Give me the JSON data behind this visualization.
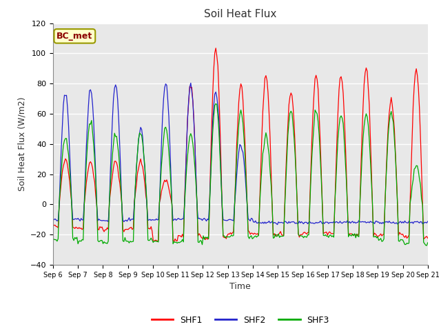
{
  "title": "Soil Heat Flux",
  "ylabel": "Soil Heat Flux (W/m2)",
  "xlabel": "Time",
  "annotation": "BC_met",
  "ylim": [
    -40,
    120
  ],
  "xtick_labels": [
    "Sep 6",
    "Sep 7",
    "Sep 8",
    "Sep 9",
    "Sep 10",
    "Sep 11",
    "Sep 12",
    "Sep 13",
    "Sep 14",
    "Sep 15",
    "Sep 16",
    "Sep 17",
    "Sep 18",
    "Sep 19",
    "Sep 20",
    "Sep 21"
  ],
  "line_colors": {
    "SHF1": "#FF0000",
    "SHF2": "#2222CC",
    "SHF3": "#00AA00"
  },
  "legend_labels": [
    "SHF1",
    "SHF2",
    "SHF3"
  ],
  "plot_bg_color": "#E8E8E8",
  "grid_color": "#FFFFFF",
  "yticks": [
    -40,
    -20,
    0,
    20,
    40,
    60,
    80,
    100,
    120
  ],
  "shf1_peaks": [
    30,
    28,
    28,
    28,
    16,
    79,
    104,
    79,
    85,
    75,
    85,
    85,
    90,
    70,
    90
  ],
  "shf2_peaks": [
    74,
    76,
    80,
    50,
    81,
    79,
    75,
    40,
    0,
    0,
    0,
    0,
    0,
    0,
    0
  ],
  "shf3_peaks": [
    45,
    55,
    46,
    48,
    50,
    47,
    67,
    62,
    45,
    62,
    62,
    60,
    60,
    62,
    25
  ],
  "shf1_night": [
    -15,
    -16,
    -17,
    -16,
    -24,
    -21,
    -22,
    -19,
    -20,
    -20,
    -19,
    -19,
    -20,
    -20,
    -22
  ],
  "shf2_night": [
    -10,
    -10,
    -11,
    -10,
    -10,
    -10,
    -10,
    -10,
    -12,
    -12,
    -12,
    -12,
    -12,
    -12,
    -12
  ],
  "shf3_night": [
    -23,
    -24,
    -25,
    -24,
    -25,
    -25,
    -22,
    -21,
    -21,
    -21,
    -21,
    -21,
    -21,
    -24,
    -26
  ]
}
